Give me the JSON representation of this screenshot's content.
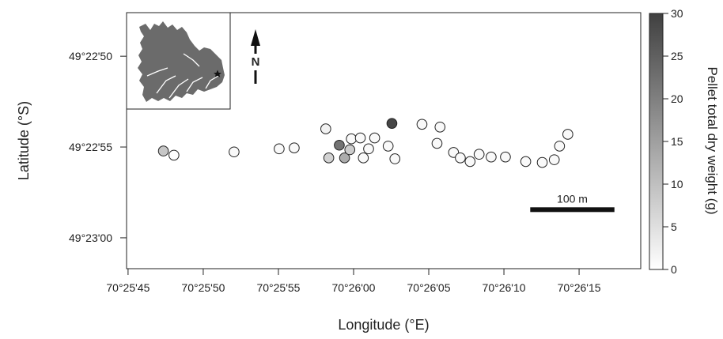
{
  "chart_data": {
    "type": "scatter",
    "title": "",
    "xlabel": "Longitude (°E)",
    "ylabel": "Latitude (°S)",
    "x_ticks": [
      {
        "value": 0,
        "label": "70°25'45"
      },
      {
        "value": 5,
        "label": "70°25'50"
      },
      {
        "value": 10,
        "label": "70°25'55"
      },
      {
        "value": 15,
        "label": "70°26'00"
      },
      {
        "value": 20,
        "label": "70°26'05"
      },
      {
        "value": 25,
        "label": "70°26'10"
      },
      {
        "value": 30,
        "label": "70°26'15"
      }
    ],
    "y_ticks": [
      {
        "value": 50,
        "label": "49°22'50"
      },
      {
        "value": 55,
        "label": "49°22'55"
      },
      {
        "value": 60,
        "label": "49°23'00"
      }
    ],
    "xlim": [
      -0.1,
      34.1
    ],
    "ylim": [
      47.6,
      61.7
    ],
    "grid": false,
    "colorbar": {
      "label": "Pellet total dry weight (g)",
      "min": 0,
      "max": 30,
      "ticks": [
        0,
        5,
        10,
        15,
        20,
        25,
        30
      ],
      "color_low": "#ffffff",
      "color_high": "#404040"
    },
    "points": [
      {
        "x": 2.35,
        "y": 55.22,
        "v": 9
      },
      {
        "x": 3.05,
        "y": 55.45,
        "v": 0
      },
      {
        "x": 7.05,
        "y": 55.27,
        "v": 1
      },
      {
        "x": 10.05,
        "y": 55.1,
        "v": 1
      },
      {
        "x": 11.05,
        "y": 55.05,
        "v": 1
      },
      {
        "x": 13.15,
        "y": 54.0,
        "v": 2
      },
      {
        "x": 13.35,
        "y": 55.6,
        "v": 7
      },
      {
        "x": 14.05,
        "y": 54.9,
        "v": 22
      },
      {
        "x": 14.4,
        "y": 55.6,
        "v": 13
      },
      {
        "x": 14.75,
        "y": 55.15,
        "v": 8
      },
      {
        "x": 14.85,
        "y": 54.55,
        "v": 1
      },
      {
        "x": 15.45,
        "y": 54.5,
        "v": 1
      },
      {
        "x": 15.65,
        "y": 55.6,
        "v": 1
      },
      {
        "x": 16.0,
        "y": 55.1,
        "v": 1
      },
      {
        "x": 16.4,
        "y": 54.5,
        "v": 1
      },
      {
        "x": 17.3,
        "y": 54.95,
        "v": 1
      },
      {
        "x": 17.55,
        "y": 53.7,
        "v": 29
      },
      {
        "x": 17.75,
        "y": 55.65,
        "v": 1
      },
      {
        "x": 19.55,
        "y": 53.75,
        "v": 1
      },
      {
        "x": 20.55,
        "y": 54.8,
        "v": 1
      },
      {
        "x": 20.75,
        "y": 53.9,
        "v": 1
      },
      {
        "x": 21.65,
        "y": 55.3,
        "v": 1
      },
      {
        "x": 22.1,
        "y": 55.6,
        "v": 1
      },
      {
        "x": 22.75,
        "y": 55.8,
        "v": 1
      },
      {
        "x": 23.35,
        "y": 55.4,
        "v": 1
      },
      {
        "x": 24.15,
        "y": 55.55,
        "v": 1
      },
      {
        "x": 25.1,
        "y": 55.55,
        "v": 1
      },
      {
        "x": 26.45,
        "y": 55.8,
        "v": 1
      },
      {
        "x": 27.55,
        "y": 55.85,
        "v": 1
      },
      {
        "x": 28.35,
        "y": 55.7,
        "v": 1
      },
      {
        "x": 28.7,
        "y": 54.95,
        "v": 1
      },
      {
        "x": 29.25,
        "y": 54.3,
        "v": 1
      }
    ],
    "north_arrow_label": "N",
    "scale_bar": {
      "label": "100 m",
      "x0": 26.75,
      "x1": 32.35,
      "y": 58.45
    }
  }
}
